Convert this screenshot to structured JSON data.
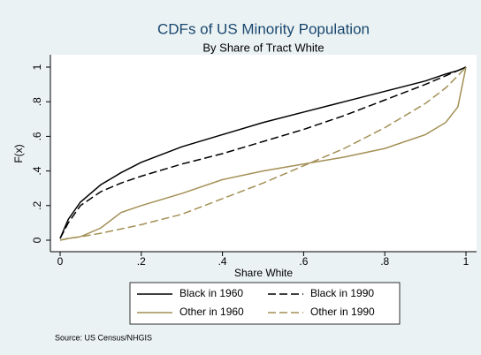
{
  "chart_data": {
    "type": "line",
    "title": "CDFs of US Minority Population",
    "subtitle": "By Share of Tract White",
    "x_label": "Share White",
    "y_label": "F(x)",
    "note": "Source: US Census/NHGIS",
    "x": [
      0,
      0.02,
      0.05,
      0.1,
      0.15,
      0.2,
      0.3,
      0.4,
      0.5,
      0.6,
      0.7,
      0.8,
      0.9,
      0.95,
      0.98,
      1
    ],
    "series": [
      {
        "name": "Black in 1960",
        "color": "#000000",
        "dashed": false,
        "values": [
          0.01,
          0.12,
          0.22,
          0.32,
          0.39,
          0.45,
          0.54,
          0.61,
          0.68,
          0.74,
          0.8,
          0.86,
          0.92,
          0.96,
          0.98,
          1
        ]
      },
      {
        "name": "Black in 1990",
        "color": "#000000",
        "dashed": true,
        "values": [
          0.01,
          0.1,
          0.2,
          0.28,
          0.33,
          0.37,
          0.44,
          0.5,
          0.57,
          0.64,
          0.72,
          0.81,
          0.9,
          0.95,
          0.98,
          1
        ]
      },
      {
        "name": "Other in 1960",
        "color": "#a38f55",
        "dashed": false,
        "values": [
          0,
          0.01,
          0.02,
          0.07,
          0.16,
          0.2,
          0.27,
          0.35,
          0.4,
          0.44,
          0.48,
          0.53,
          0.61,
          0.68,
          0.77,
          1
        ]
      },
      {
        "name": "Other in 1990",
        "color": "#a38f55",
        "dashed": true,
        "values": [
          0,
          0.01,
          0.02,
          0.04,
          0.065,
          0.09,
          0.15,
          0.24,
          0.33,
          0.43,
          0.53,
          0.65,
          0.79,
          0.88,
          0.95,
          1
        ]
      }
    ],
    "xlim": [
      0,
      1
    ],
    "ylim": [
      0,
      1
    ],
    "xticks": [
      0,
      {
        "value": 0.2,
        "label": ".2"
      },
      {
        "value": 0.4,
        "label": ".4"
      },
      {
        "value": 0.6,
        "label": ".6"
      },
      {
        "value": 0.8,
        "label": ".8"
      },
      1
    ],
    "yticks": [
      0,
      {
        "value": 0.2,
        "label": ".2"
      },
      {
        "value": 0.4,
        "label": ".4"
      },
      {
        "value": 0.6,
        "label": ".6"
      },
      {
        "value": 0.8,
        "label": ".8"
      },
      1
    ],
    "grid": false,
    "legend": "bottom"
  }
}
